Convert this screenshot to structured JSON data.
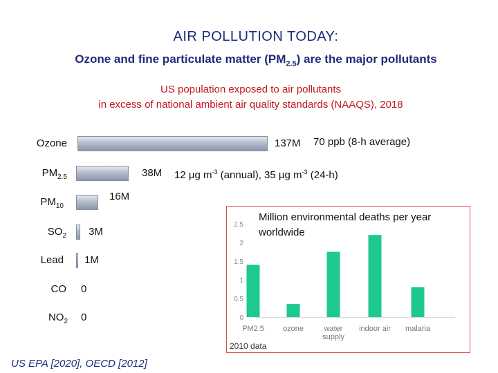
{
  "header": {
    "title": "AIR POLLUTION TODAY:",
    "subtitle_pre": "Ozone and fine particulate matter (PM",
    "subtitle_sub": "2.5",
    "subtitle_post": ") are the major pollutants",
    "red_line1": "US population exposed to air pollutants",
    "red_line2": "in excess of national ambient air quality standards (NAAQS), 2018"
  },
  "notes": {
    "ozone": "70 ppb (8-h average)",
    "pm25_a": "12 µg m",
    "pm25_a_sup": "-3",
    "pm25_b": " (annual), 35 µg m",
    "pm25_b_sup": "-3",
    "pm25_c": " (24-h)"
  },
  "footer": {
    "source": "US EPA [2020], OECD [2012]"
  },
  "colors": {
    "bar_main": "#9aa3b6",
    "inset_bar": "#1ec98f",
    "inset_border": "#d94f4f",
    "title": "#1f2b7a",
    "red_text": "#c2161c"
  },
  "chart_data": [
    {
      "type": "bar",
      "orientation": "horizontal",
      "title": "US population exposed to air pollutants in excess of national ambient air quality standards (NAAQS), 2018",
      "categories": [
        {
          "name": "Ozone",
          "sub": ""
        },
        {
          "name": "PM",
          "sub": "2.5"
        },
        {
          "name": "PM",
          "sub": "10"
        },
        {
          "name": "SO",
          "sub": "2"
        },
        {
          "name": "Lead",
          "sub": ""
        },
        {
          "name": "CO",
          "sub": ""
        },
        {
          "name": "NO",
          "sub": "2"
        }
      ],
      "values": [
        137,
        38,
        16,
        3,
        1,
        0,
        0
      ],
      "value_labels": [
        "137M",
        "38M",
        "16M",
        "3M",
        "1M",
        "0",
        "0"
      ],
      "units": "M"
    },
    {
      "type": "bar",
      "title": "Million environmental deaths per year worldwide",
      "title_line1": "Million environmental deaths per year",
      "title_line2": "worldwide",
      "categories": [
        "PM2.5",
        "ozone",
        "water supply",
        "indoor air",
        "malaria"
      ],
      "category_labels": [
        [
          "PM2.5"
        ],
        [
          "ozone"
        ],
        [
          "water",
          "supply"
        ],
        [
          "indoor air"
        ],
        [
          "malaria"
        ]
      ],
      "values": [
        1.4,
        0.35,
        1.75,
        2.2,
        0.8
      ],
      "yticks": [
        "0",
        "0.5",
        "1",
        "1.5",
        "2",
        "2.5"
      ],
      "ylim": [
        0,
        2.5
      ],
      "note": "2010 data",
      "grid": false
    }
  ]
}
